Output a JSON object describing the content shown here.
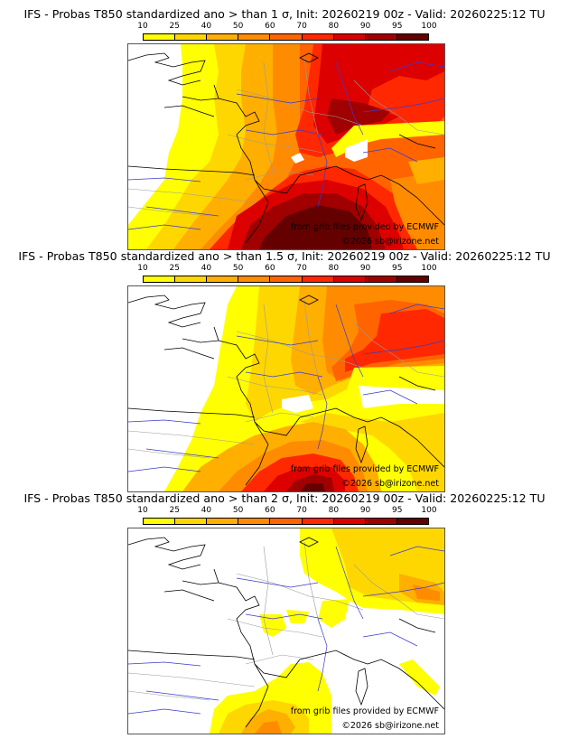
{
  "colorbar": {
    "ticks": [
      "10",
      "25",
      "40",
      "50",
      "60",
      "70",
      "80",
      "90",
      "95",
      "100"
    ],
    "colors": [
      "#ffff00",
      "#ffd700",
      "#ffaf00",
      "#ff8c00",
      "#ff6400",
      "#ff2800",
      "#dc0000",
      "#a00000",
      "#640000"
    ]
  },
  "panels": [
    {
      "title": "IFS - Probas T850  standardized ano > than 1 σ, Init: 20260219 00z - Valid: 20260225:12 TU",
      "threshold_sigma": 1,
      "credit_source": "from grib files provided by ECMWF",
      "credit_copyright": "©2026 sb@irizone.net"
    },
    {
      "title": "IFS - Probas T850  standardized ano > than 1.5 σ, Init: 20260219 00z - Valid: 20260225:12 TU",
      "threshold_sigma": 1.5,
      "credit_source": "from grib files provided by ECMWF",
      "credit_copyright": "©2026 sb@irizone.net"
    },
    {
      "title": "IFS - Probas T850  standardized ano > than 2 σ, Init: 20260219 00z - Valid: 20260225:12 TU",
      "threshold_sigma": 2,
      "credit_source": "from grib files provided by ECMWF",
      "credit_copyright": "©2026 sb@irizone.net"
    }
  ],
  "map_colors": {
    "coast": "#000000",
    "rivers": "#3a3acf",
    "borders": "#9a9a9a"
  }
}
